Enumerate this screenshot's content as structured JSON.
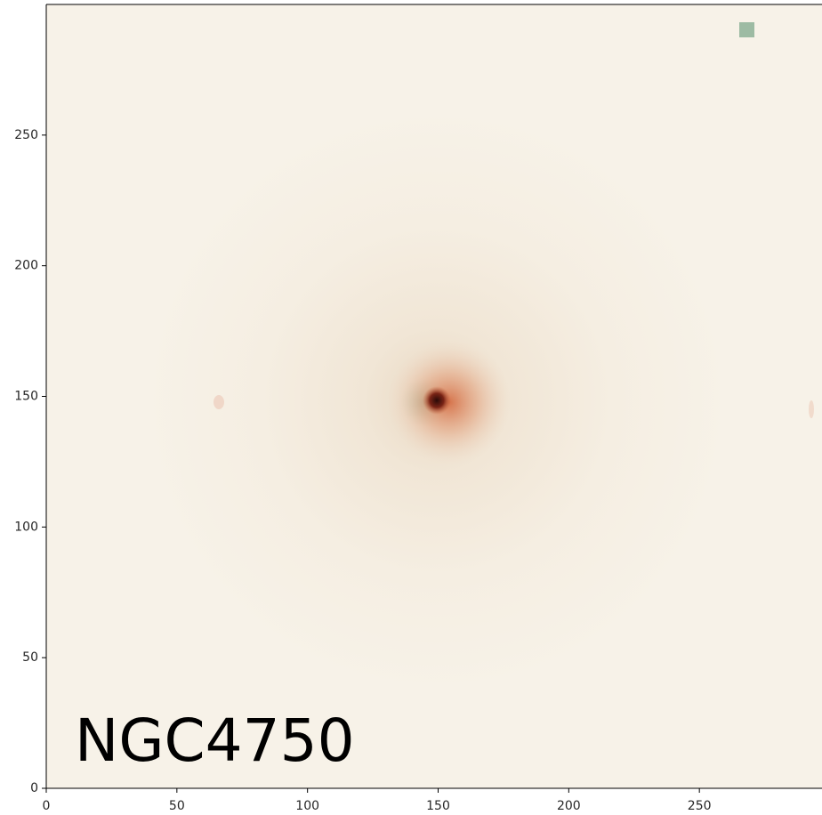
{
  "chart_data": {
    "type": "image",
    "annotation": "NGC4750",
    "xlim": [
      0,
      300
    ],
    "ylim": [
      0,
      300
    ],
    "xticks": [
      0,
      50,
      100,
      150,
      200,
      250
    ],
    "yticks": [
      0,
      50,
      100,
      150,
      200,
      250
    ]
  }
}
